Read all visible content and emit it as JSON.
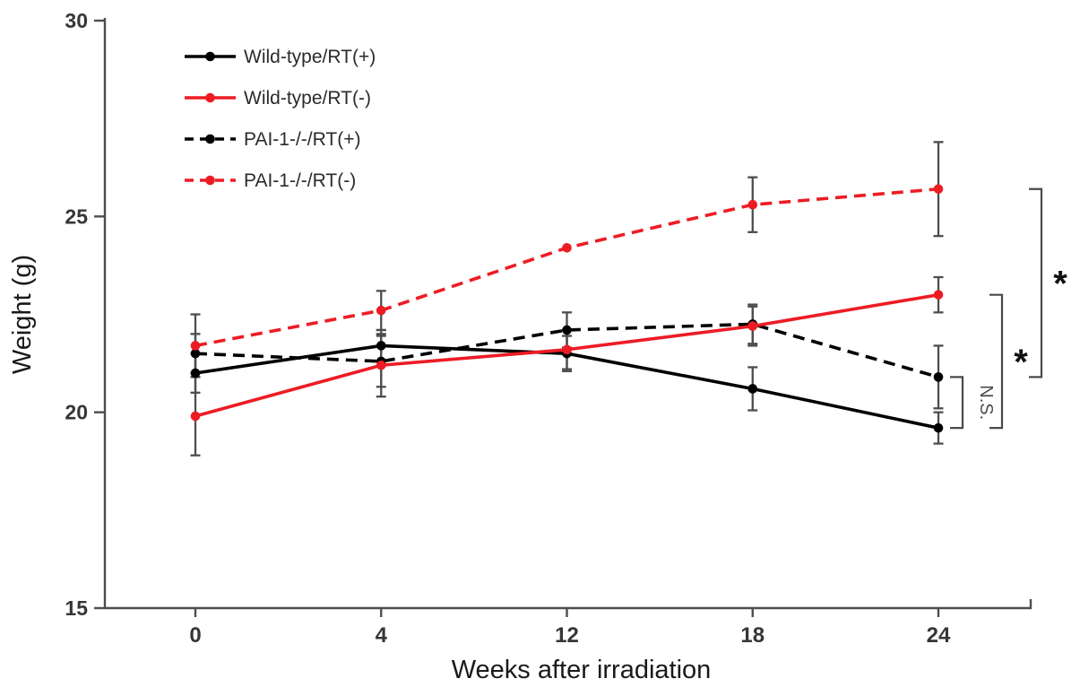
{
  "chart_data": {
    "type": "line",
    "title": "",
    "xlabel": "Weeks after irradiation",
    "ylabel": "Weight (g)",
    "x_categories": [
      "0",
      "4",
      "12",
      "18",
      "24"
    ],
    "ylim": [
      15,
      30
    ],
    "yticks": [
      30,
      25,
      20,
      15
    ],
    "grid": false,
    "legend_position": "top-left-inside",
    "series": [
      {
        "name": "Wild-type/RT(+)",
        "color": "#000000",
        "style": "solid",
        "marker": "circle",
        "values": [
          21.0,
          21.7,
          21.5,
          20.6,
          19.6
        ],
        "errors": [
          0.5,
          0.4,
          0.45,
          0.55,
          0.4
        ]
      },
      {
        "name": "Wild-type/RT(-)",
        "color": "#ed1c24",
        "style": "solid",
        "marker": "circle",
        "values": [
          19.9,
          21.2,
          21.6,
          22.2,
          23.0
        ],
        "errors": [
          1.0,
          0.8,
          0.5,
          0.5,
          0.45
        ]
      },
      {
        "name": "PAI-1-/-/RT(+)",
        "color": "#000000",
        "style": "dashed",
        "marker": "circle",
        "values": [
          21.5,
          21.3,
          22.1,
          22.25,
          20.9
        ],
        "errors": [
          0.5,
          0.65,
          0.45,
          0.5,
          0.8
        ]
      },
      {
        "name": "PAI-1-/-/RT(-)",
        "color": "#ed1c24",
        "style": "dashed",
        "marker": "circle",
        "values": [
          21.7,
          22.6,
          24.2,
          25.3,
          25.7
        ],
        "errors": [
          0.8,
          0.5,
          0,
          0.7,
          1.2
        ]
      }
    ],
    "annotations": [
      {
        "label": "N.S.",
        "between": [
          "PAI-1-/-/RT(+)",
          "Wild-type/RT(+)"
        ],
        "rotated": true,
        "tier": 0
      },
      {
        "label": "*",
        "between": [
          "Wild-type/RT(-)",
          "Wild-type/RT(+)"
        ],
        "rotated": false,
        "tier": 1
      },
      {
        "label": "*",
        "between": [
          "PAI-1-/-/RT(-)",
          "PAI-1-/-/RT(+)"
        ],
        "rotated": false,
        "tier": 2
      }
    ],
    "colors": {
      "axis": "#4d4d4d",
      "error_bar": "#4d4d4d",
      "tick_label": "#363636",
      "annotation": "#4a4a4a",
      "series_red": "#ed1c24",
      "series_black": "#000000",
      "background": "#ffffff"
    }
  }
}
